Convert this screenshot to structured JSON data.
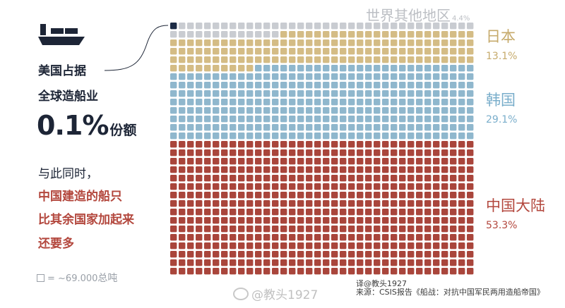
{
  "headline": {
    "line1": "美国占据",
    "line2": "全球造船业",
    "share_value": "0.1%",
    "share_suffix": "份额",
    "line4": "与此同时，",
    "line5": "中国建造的船只",
    "line6": "比其余国家加起来",
    "line7": "还要多"
  },
  "legend_note": {
    "text": "= ~69.000",
    "unit": "总吨"
  },
  "watermark": {
    "text": "@教头1927"
  },
  "source": {
    "line1": "译@教头1927",
    "line2": "来源：CSIS报告《船战：对抗中国军民两用造船帝国》"
  },
  "chart_data": {
    "type": "waffle",
    "unit": "~69,000 gross tonnage per square",
    "series": [
      {
        "name": "美国",
        "value": 0.1,
        "color": "#1c2b45"
      },
      {
        "name": "世界其他地区",
        "value": 4.4,
        "color": "#c9ccd1"
      },
      {
        "name": "日本",
        "value": 13.1,
        "color": "#d4bc85"
      },
      {
        "name": "韩国",
        "value": 29.1,
        "color": "#8fb7cd"
      },
      {
        "name": "中国大陆",
        "value": 53.3,
        "color": "#a9453b"
      }
    ],
    "labels": {
      "rest": {
        "name": "世界其他地区",
        "pct": "4.4%"
      },
      "jp": {
        "name": "日本",
        "pct": "13.1%"
      },
      "kr": {
        "name": "韩国",
        "pct": "29.1%"
      },
      "cn": {
        "name": "中国大陆",
        "pct": "53.3%"
      }
    }
  }
}
